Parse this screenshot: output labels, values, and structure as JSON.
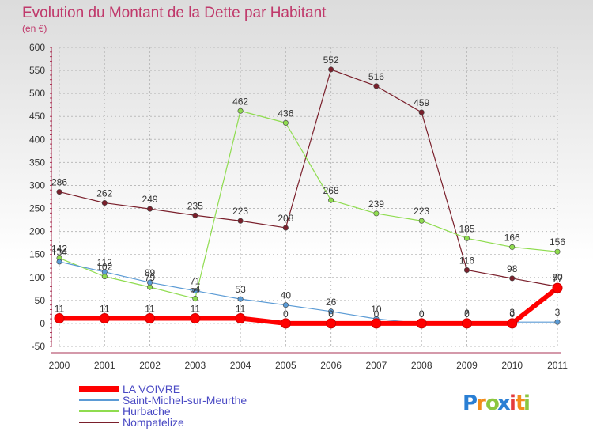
{
  "chart_data": {
    "type": "line",
    "title": "Evolution du Montant de la Dette par Habitant",
    "subtitle": "(en €)",
    "xlabel": "",
    "ylabel": "",
    "x": [
      "2000",
      "2001",
      "2002",
      "2003",
      "2004",
      "2005",
      "2006",
      "2007",
      "2008",
      "2009",
      "2010",
      "2011"
    ],
    "ylim": [
      -50,
      600
    ],
    "yticks": [
      -50,
      0,
      50,
      100,
      150,
      200,
      250,
      300,
      350,
      400,
      450,
      500,
      550,
      600
    ],
    "ytick_labels": [
      "-50",
      "0",
      "50",
      "100",
      "150",
      "200",
      "250",
      "300",
      "350",
      "400",
      "450",
      "500",
      "550",
      "600"
    ],
    "grid": true,
    "legend_position": "bottom-left",
    "series": [
      {
        "name": "Nompatelize",
        "color": "#7a1f2b",
        "values": [
          286,
          262,
          249,
          235,
          223,
          208,
          552,
          516,
          459,
          116,
          98,
          80
        ],
        "labels": [
          "286",
          "262",
          "249",
          "235",
          "223",
          "208",
          "552",
          "516",
          "459",
          "116",
          "98",
          "80"
        ],
        "label_pos": [
          "above",
          "above",
          "above",
          "above",
          "above",
          "above",
          "above",
          "above",
          "above",
          "above",
          "above",
          "above"
        ]
      },
      {
        "name": "Hurbache",
        "color": "#8fdc4f",
        "values": [
          142,
          102,
          79,
          54,
          462,
          436,
          268,
          239,
          223,
          185,
          166,
          156
        ],
        "labels": [
          "142",
          "102",
          "79",
          "54",
          "462",
          "436",
          "268",
          "239",
          "223",
          "185",
          "166",
          "156"
        ],
        "label_pos": [
          "above",
          "above",
          "above",
          "above",
          "above",
          "above",
          "above",
          "above",
          "above",
          "above",
          "above",
          "above"
        ]
      },
      {
        "name": "Saint-Michel-sur-Meurthe",
        "color": "#5b9bd5",
        "values": [
          134,
          112,
          89,
          71,
          53,
          40,
          26,
          10,
          0,
          2,
          3,
          3
        ],
        "labels": [
          "134",
          "112",
          "89",
          "71",
          "53",
          "40",
          "26",
          "10",
          "0",
          "2",
          "3",
          "3"
        ],
        "label_pos": [
          "above",
          "above",
          "above",
          "above",
          "above",
          "above",
          "above",
          "above",
          "above",
          "above",
          "above",
          "above"
        ]
      },
      {
        "name": "LA VOIVRE",
        "color": "#ff0000",
        "values": [
          11,
          11,
          11,
          11,
          11,
          0,
          0,
          0,
          0,
          0,
          0,
          77
        ],
        "labels": [
          "11",
          "11",
          "11",
          "11",
          "11",
          "0",
          "0",
          "0",
          "0",
          "0",
          "0",
          "77"
        ],
        "label_pos": [
          "above",
          "above",
          "above",
          "above",
          "above",
          "above",
          "above",
          "above",
          "above",
          "above",
          "above",
          "above"
        ]
      }
    ],
    "legend_order": [
      "LA VOIVRE",
      "Saint-Michel-sur-Meurthe",
      "Hurbache",
      "Nompatelize"
    ]
  },
  "logo": {
    "text": "Proxiti",
    "letters": [
      "P",
      "r",
      "o",
      "x",
      "i",
      "t",
      "i"
    ],
    "letter_colors": [
      "#2a7fd4",
      "#f28c1a",
      "#8cc63f",
      "#2a7fd4",
      "#e43b3b",
      "#f28c1a",
      "#8cc63f"
    ]
  },
  "colors": {
    "title": "#c0396b",
    "axis_text": "#333333",
    "grid": "#bbbbbb",
    "legend_text": "#4a4ac4"
  }
}
